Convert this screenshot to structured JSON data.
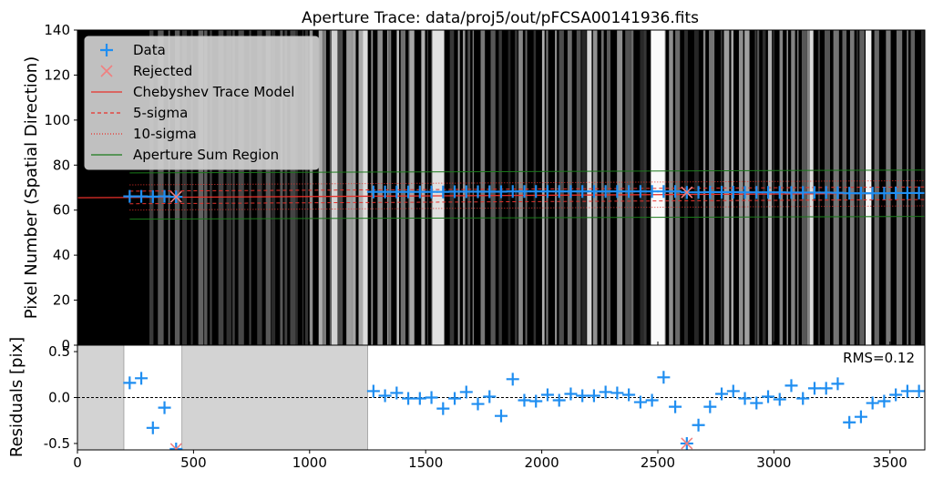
{
  "chart_data": [
    {
      "type": "scatter",
      "panel": "trace",
      "title": "Aperture Trace: data/proj5/out/pFCSA00141936.fits",
      "xlabel": "",
      "ylabel": "Pixel Number (Spatial Direction)",
      "xlim": [
        0,
        3650
      ],
      "ylim": [
        0,
        140
      ],
      "yticks": [
        0,
        20,
        40,
        60,
        80,
        100,
        120,
        140
      ],
      "legend_position": "top-left",
      "legend": [
        "Data",
        "Rejected",
        "Chebyshev Trace Model",
        "5-sigma",
        "10-sigma",
        "Aperture Sum Region"
      ],
      "background": "grayscale spectral image with vertical emission/sky lines",
      "model": {
        "x": [
          0,
          3650
        ],
        "y": [
          65.5,
          67.5
        ]
      },
      "aperture": {
        "x": [
          225,
          3650
        ],
        "upper": [
          76.5,
          77.8
        ],
        "lower": [
          56.0,
          57.2
        ]
      },
      "data_points": {
        "x": [
          225,
          275,
          325,
          375,
          1275,
          1325,
          1375,
          1425,
          1475,
          1525,
          1575,
          1625,
          1675,
          1725,
          1775,
          1825,
          1875,
          1925,
          1975,
          2025,
          2075,
          2125,
          2175,
          2225,
          2275,
          2325,
          2375,
          2425,
          2475,
          2525,
          2575,
          2675,
          2725,
          2775,
          2825,
          2875,
          2925,
          2975,
          3025,
          3075,
          3125,
          3175,
          3225,
          3275,
          3325,
          3375,
          3425,
          3475,
          3525,
          3575,
          3625
        ],
        "y": [
          66.1,
          66.1,
          66.0,
          66.1,
          68.1,
          68.1,
          68.1,
          68.1,
          68.1,
          68.1,
          68.1,
          68.2,
          68.2,
          68.2,
          68.2,
          68.2,
          68.3,
          68.3,
          68.3,
          68.3,
          68.3,
          68.3,
          68.3,
          68.3,
          68.3,
          68.3,
          68.3,
          68.3,
          68.3,
          68.3,
          68.3,
          67.9,
          68.0,
          68.0,
          68.0,
          67.9,
          67.9,
          67.9,
          67.9,
          67.8,
          67.8,
          67.8,
          67.8,
          67.7,
          67.5,
          67.5,
          67.5,
          67.5,
          67.6,
          67.6,
          67.6
        ]
      },
      "rejected_points": {
        "x": [
          425,
          2625
        ],
        "y": [
          65.9,
          67.9
        ]
      }
    },
    {
      "type": "scatter",
      "panel": "residuals",
      "xlabel": "Pixel Number (Dispersion Direction)",
      "ylabel": "Residuals [pix]",
      "xlim": [
        0,
        3650
      ],
      "ylim": [
        -0.57,
        0.57
      ],
      "xticks": [
        0,
        500,
        1000,
        1500,
        2000,
        2500,
        3000,
        3500
      ],
      "yticks": [
        -0.5,
        0.0,
        0.5
      ],
      "annotation": "RMS=0.12",
      "zero_line": true,
      "masked_regions": [
        [
          0,
          200
        ],
        [
          450,
          1250
        ]
      ],
      "data_points": {
        "x": [
          225,
          275,
          325,
          375,
          1275,
          1325,
          1375,
          1425,
          1475,
          1525,
          1575,
          1625,
          1675,
          1725,
          1775,
          1825,
          1875,
          1925,
          1975,
          2025,
          2075,
          2125,
          2175,
          2225,
          2275,
          2325,
          2375,
          2425,
          2475,
          2525,
          2575,
          2675,
          2725,
          2775,
          2825,
          2875,
          2925,
          2975,
          3025,
          3075,
          3125,
          3175,
          3225,
          3275,
          3325,
          3375,
          3425,
          3475,
          3525,
          3575,
          3625
        ],
        "y": [
          0.16,
          0.21,
          -0.33,
          -0.11,
          0.07,
          0.02,
          0.05,
          -0.01,
          -0.01,
          0.0,
          -0.12,
          -0.01,
          0.06,
          -0.07,
          0.01,
          -0.2,
          0.2,
          -0.03,
          -0.04,
          0.03,
          -0.03,
          0.04,
          0.02,
          0.02,
          0.06,
          0.05,
          0.03,
          -0.05,
          -0.03,
          0.22,
          -0.1,
          -0.3,
          -0.1,
          0.04,
          0.07,
          -0.01,
          -0.06,
          0.01,
          -0.02,
          0.13,
          -0.01,
          0.1,
          0.1,
          0.15,
          -0.27,
          -0.21,
          -0.06,
          -0.04,
          0.03,
          0.07,
          0.07
        ]
      },
      "rejected_points": {
        "x": [
          425,
          2625
        ],
        "y": [
          -0.56,
          -0.5
        ]
      }
    }
  ],
  "colors": {
    "data": "#1f8ef1",
    "rejected": "#f08080",
    "model": "#e8302a",
    "sigma": "#e8302a",
    "aperture": "#1a7a1a",
    "mask": "#d3d3d3"
  }
}
